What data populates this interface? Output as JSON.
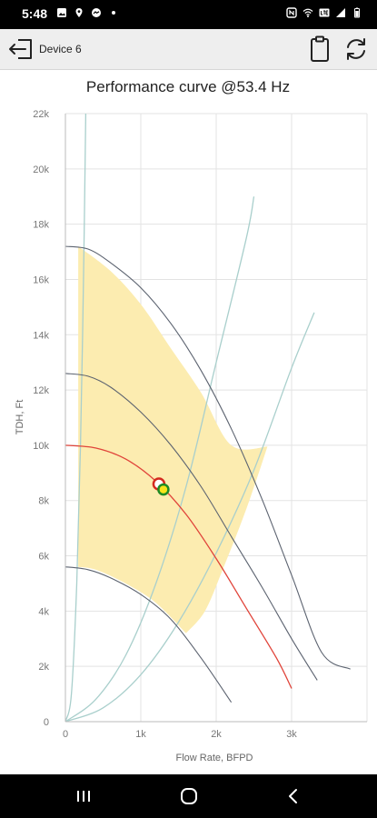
{
  "status_bar": {
    "time": "5:48",
    "left_icons": [
      "gallery-icon",
      "location-icon",
      "messenger-icon",
      "dot-icon"
    ],
    "right_icons": [
      "nfc-icon",
      "wifi-icon",
      "lte-icon",
      "signal-icon",
      "battery-icon"
    ]
  },
  "app_bar": {
    "device_name": "Device 6",
    "icons": [
      "exit-icon",
      "clipboard-icon",
      "refresh-icon"
    ]
  },
  "nav_bar": {
    "icons": [
      "recent-apps-icon",
      "home-icon",
      "back-icon"
    ]
  },
  "chart_data": {
    "type": "line",
    "title": "Performance curve @53.4 Hz",
    "xlabel": "Flow Rate, BFPD",
    "ylabel": "TDH, Ft",
    "xlim": [
      0,
      4000
    ],
    "ylim": [
      0,
      22000
    ],
    "x_ticks": [
      0,
      1000,
      2000,
      3000
    ],
    "x_tick_labels": [
      "0",
      "1k",
      "2k",
      "3k"
    ],
    "y_ticks": [
      0,
      2000,
      4000,
      6000,
      8000,
      10000,
      12000,
      14000,
      16000,
      18000,
      20000,
      22000
    ],
    "y_tick_labels": [
      "0",
      "2k",
      "4k",
      "6k",
      "8k",
      "10k",
      "12k",
      "14k",
      "16k",
      "18k",
      "20k",
      "22k"
    ],
    "grid": true,
    "colors": {
      "operating_range_fill": "#fcecb0",
      "head_curve": "#5c6370",
      "current_curve": "#e0443a",
      "system_curve": "#a9cfcc",
      "grid": "#e3e3e3",
      "operating_point_fill": "#f6e51a",
      "operating_point_ring": "#1e8a24",
      "measured_point_ring": "#d42a1f"
    },
    "operating_range": {
      "upper": [
        [
          170,
          17200
        ],
        [
          600,
          16300
        ],
        [
          1000,
          15100
        ],
        [
          1400,
          13500
        ],
        [
          1800,
          11900
        ],
        [
          2200,
          10000
        ],
        [
          2680,
          9950
        ]
      ],
      "right": [
        [
          2680,
          9950
        ],
        [
          2400,
          7700
        ],
        [
          2100,
          5600
        ],
        [
          1850,
          4000
        ],
        [
          1600,
          3200
        ]
      ],
      "lower": [
        [
          1600,
          3200
        ],
        [
          1200,
          4300
        ],
        [
          800,
          5000
        ],
        [
          400,
          5500
        ],
        [
          170,
          5600
        ]
      ]
    },
    "head_curves": [
      {
        "x": [
          0,
          300,
          600,
          1000,
          1400,
          1800,
          2200,
          2600,
          3000,
          3400,
          3780
        ],
        "y": [
          17200,
          17100,
          16600,
          15700,
          14400,
          12700,
          10600,
          8100,
          5300,
          2500,
          1900
        ]
      },
      {
        "x": [
          0,
          300,
          600,
          1000,
          1400,
          1800,
          2200,
          2600,
          3000,
          3340
        ],
        "y": [
          12600,
          12500,
          12100,
          11200,
          10000,
          8500,
          6700,
          4900,
          3000,
          1500
        ]
      },
      {
        "x": [
          0,
          300,
          600,
          1000,
          1400,
          1800,
          2200
        ],
        "y": [
          5600,
          5500,
          5200,
          4600,
          3700,
          2300,
          700
        ]
      }
    ],
    "current_curve": {
      "x": [
        0,
        400,
        800,
        1200,
        1600,
        2000,
        2400,
        2800,
        3000
      ],
      "y": [
        10000,
        9900,
        9500,
        8700,
        7500,
        5900,
        4100,
        2300,
        1200
      ]
    },
    "system_curves": [
      {
        "x": [
          0,
          80,
          150,
          200,
          240,
          270
        ],
        "y": [
          0,
          1000,
          5000,
          10000,
          16000,
          22000
        ]
      },
      {
        "x": [
          0,
          400,
          800,
          1200,
          1600,
          2000,
          2400,
          2500
        ],
        "y": [
          0,
          800,
          2400,
          5000,
          8500,
          13000,
          17500,
          19000
        ]
      },
      {
        "x": [
          0,
          500,
          1000,
          1500,
          2000,
          2500,
          3000,
          3300
        ],
        "y": [
          0,
          500,
          1700,
          3600,
          6100,
          9100,
          12800,
          14800
        ]
      }
    ],
    "measured_point": {
      "x": 1240,
      "y": 8600
    },
    "operating_point": {
      "x": 1300,
      "y": 8400
    }
  }
}
